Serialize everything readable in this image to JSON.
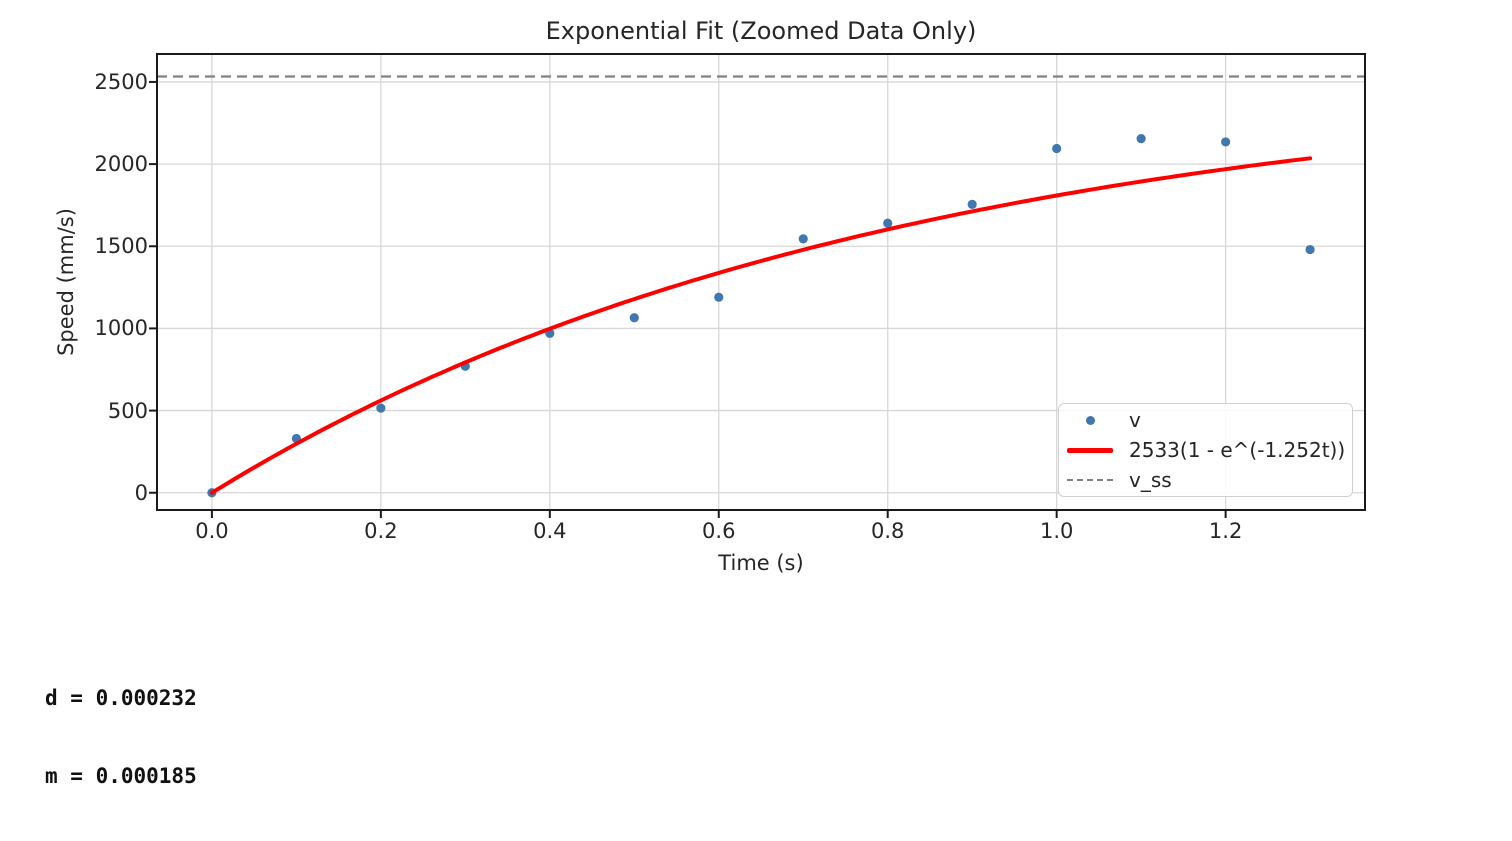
{
  "figure": {
    "kind": "matplotlib-plot"
  },
  "footer": {
    "lines": [
      "d = 0.000232",
      "m = 0.000185"
    ]
  },
  "colors": {
    "grid": "#d7d7d7",
    "axis": "#1a1a1a",
    "text": "#262626",
    "legend_border": "#cfcfcf",
    "background": "#ffffff"
  },
  "chart_data": {
    "type": "scatter",
    "title": "Exponential Fit (Zoomed Data Only)",
    "xlabel": "Time (s)",
    "ylabel": "Speed (mm/s)",
    "xlim": [
      -0.065,
      1.365
    ],
    "ylim": [
      -105,
      2670
    ],
    "xticks": [
      0.0,
      0.2,
      0.4,
      0.6,
      0.8,
      1.0,
      1.2
    ],
    "xtick_labels": [
      "0.0",
      "0.2",
      "0.4",
      "0.6",
      "0.8",
      "1.0",
      "1.2"
    ],
    "yticks": [
      0,
      500,
      1000,
      1500,
      2000,
      2500
    ],
    "ytick_labels": [
      "0",
      "500",
      "1000",
      "1500",
      "2000",
      "2500"
    ],
    "grid": true,
    "legend_position": "lower right",
    "series": [
      {
        "name": "v",
        "type": "scatter",
        "color": "#3f77ae",
        "marker": "circle",
        "x": [
          0.0,
          0.1,
          0.2,
          0.3,
          0.4,
          0.5,
          0.6,
          0.7,
          0.8,
          0.9,
          1.0,
          1.1,
          1.2,
          1.3
        ],
        "y": [
          0,
          330,
          515,
          770,
          970,
          1065,
          1190,
          1545,
          1640,
          1755,
          2095,
          2155,
          2135,
          1480
        ]
      },
      {
        "name": "2533(1 - e^(-1.252t))",
        "type": "line",
        "color": "#ff0000",
        "linewidth": 4,
        "formula": "v(t) = 2533 * (1 - exp(-1.252 * t))",
        "amplitude": 2533,
        "rate": 1.252,
        "t_range": [
          0,
          1.3
        ]
      },
      {
        "name": "v_ss",
        "type": "hline",
        "color": "#808080",
        "linestyle": "dashed",
        "value": 2533
      }
    ]
  }
}
